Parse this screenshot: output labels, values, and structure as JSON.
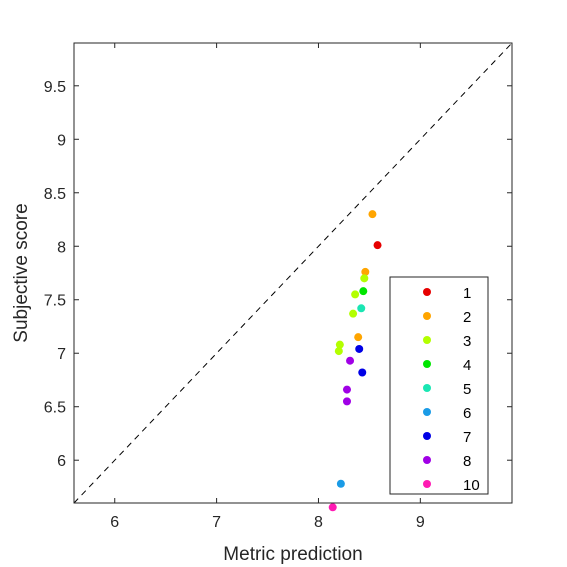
{
  "chart_data": {
    "type": "scatter",
    "title": "",
    "xlabel": "Metric prediction",
    "ylabel": "Subjective score",
    "xlim": [
      5.6,
      9.9
    ],
    "ylim": [
      5.6,
      9.9
    ],
    "x_ticks": [
      "6",
      "7",
      "8",
      "9"
    ],
    "y_ticks": [
      "6",
      "6.5",
      "7",
      "7.5",
      "8",
      "8.5",
      "9",
      "9.5"
    ],
    "grid": false,
    "reference_line": "y = x (dashed)",
    "legend_position": "lower-right",
    "series": [
      {
        "name": "1",
        "color": "#e60000",
        "points": [
          [
            8.58,
            8.01
          ]
        ]
      },
      {
        "name": "2",
        "color": "#ffa500",
        "points": [
          [
            8.53,
            8.3
          ],
          [
            8.46,
            7.76
          ],
          [
            8.39,
            7.15
          ]
        ]
      },
      {
        "name": "3",
        "color": "#b3ff00",
        "points": [
          [
            8.45,
            7.7
          ],
          [
            8.36,
            7.55
          ],
          [
            8.34,
            7.37
          ],
          [
            8.21,
            7.08
          ],
          [
            8.2,
            7.02
          ]
        ]
      },
      {
        "name": "4",
        "color": "#00e600",
        "points": [
          [
            8.44,
            7.58
          ]
        ]
      },
      {
        "name": "5",
        "color": "#1ae6b3",
        "points": [
          [
            8.42,
            7.42
          ]
        ]
      },
      {
        "name": "6",
        "color": "#1a9be6",
        "points": [
          [
            8.22,
            5.78
          ]
        ]
      },
      {
        "name": "7",
        "color": "#0000e6",
        "points": [
          [
            8.4,
            7.04
          ],
          [
            8.43,
            6.82
          ]
        ]
      },
      {
        "name": "8",
        "color": "#a000e6",
        "points": [
          [
            8.31,
            6.93
          ],
          [
            8.28,
            6.66
          ],
          [
            8.28,
            6.55
          ]
        ]
      },
      {
        "name": "10",
        "color": "#ff1ab3",
        "points": [
          [
            8.14,
            5.56
          ]
        ]
      }
    ]
  }
}
